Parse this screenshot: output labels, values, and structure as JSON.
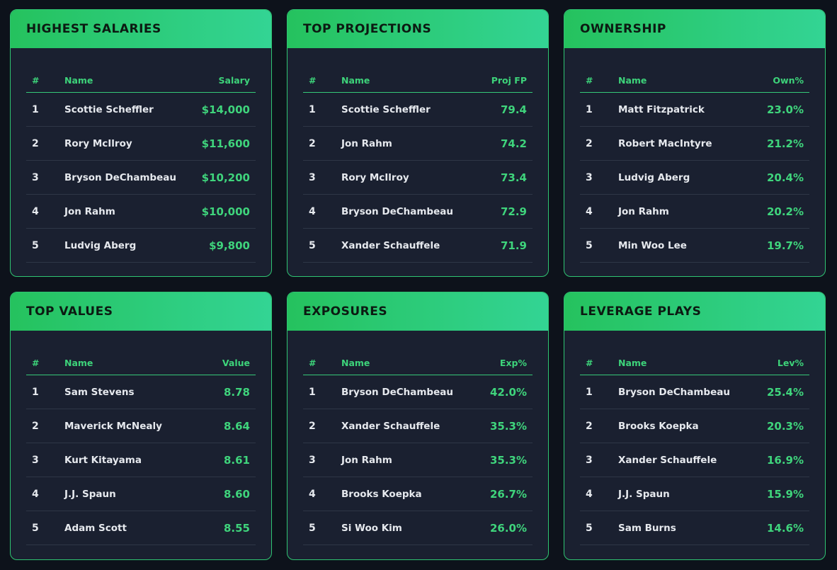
{
  "cards": [
    {
      "title": "HIGHEST SALARIES",
      "headers": {
        "rank": "#",
        "name": "Name",
        "value": "Salary"
      },
      "rows": [
        {
          "rank": "1",
          "name": "Scottie Scheffler",
          "value": "$14,000"
        },
        {
          "rank": "2",
          "name": "Rory McIlroy",
          "value": "$11,600"
        },
        {
          "rank": "3",
          "name": "Bryson DeChambeau",
          "value": "$10,200"
        },
        {
          "rank": "4",
          "name": "Jon Rahm",
          "value": "$10,000"
        },
        {
          "rank": "5",
          "name": "Ludvig Aberg",
          "value": "$9,800"
        }
      ]
    },
    {
      "title": "TOP PROJECTIONS",
      "headers": {
        "rank": "#",
        "name": "Name",
        "value": "Proj FP"
      },
      "rows": [
        {
          "rank": "1",
          "name": "Scottie Scheffler",
          "value": "79.4"
        },
        {
          "rank": "2",
          "name": "Jon Rahm",
          "value": "74.2"
        },
        {
          "rank": "3",
          "name": "Rory McIlroy",
          "value": "73.4"
        },
        {
          "rank": "4",
          "name": "Bryson DeChambeau",
          "value": "72.9"
        },
        {
          "rank": "5",
          "name": "Xander Schauffele",
          "value": "71.9"
        }
      ]
    },
    {
      "title": "OWNERSHIP",
      "headers": {
        "rank": "#",
        "name": "Name",
        "value": "Own%"
      },
      "rows": [
        {
          "rank": "1",
          "name": "Matt Fitzpatrick",
          "value": "23.0%"
        },
        {
          "rank": "2",
          "name": "Robert MacIntyre",
          "value": "21.2%"
        },
        {
          "rank": "3",
          "name": "Ludvig Aberg",
          "value": "20.4%"
        },
        {
          "rank": "4",
          "name": "Jon Rahm",
          "value": "20.2%"
        },
        {
          "rank": "5",
          "name": "Min Woo Lee",
          "value": "19.7%"
        }
      ]
    },
    {
      "title": "TOP VALUES",
      "headers": {
        "rank": "#",
        "name": "Name",
        "value": "Value"
      },
      "rows": [
        {
          "rank": "1",
          "name": "Sam Stevens",
          "value": "8.78"
        },
        {
          "rank": "2",
          "name": "Maverick McNealy",
          "value": "8.64"
        },
        {
          "rank": "3",
          "name": "Kurt Kitayama",
          "value": "8.61"
        },
        {
          "rank": "4",
          "name": "J.J. Spaun",
          "value": "8.60"
        },
        {
          "rank": "5",
          "name": "Adam Scott",
          "value": "8.55"
        }
      ]
    },
    {
      "title": "EXPOSURES",
      "headers": {
        "rank": "#",
        "name": "Name",
        "value": "Exp%"
      },
      "rows": [
        {
          "rank": "1",
          "name": "Bryson DeChambeau",
          "value": "42.0%"
        },
        {
          "rank": "2",
          "name": "Xander Schauffele",
          "value": "35.3%"
        },
        {
          "rank": "3",
          "name": "Jon Rahm",
          "value": "35.3%"
        },
        {
          "rank": "4",
          "name": "Brooks Koepka",
          "value": "26.7%"
        },
        {
          "rank": "5",
          "name": "Si Woo Kim",
          "value": "26.0%"
        }
      ]
    },
    {
      "title": "LEVERAGE PLAYS",
      "headers": {
        "rank": "#",
        "name": "Name",
        "value": "Lev%"
      },
      "rows": [
        {
          "rank": "1",
          "name": "Bryson DeChambeau",
          "value": "25.4%"
        },
        {
          "rank": "2",
          "name": "Brooks Koepka",
          "value": "20.3%"
        },
        {
          "rank": "3",
          "name": "Xander Schauffele",
          "value": "16.9%"
        },
        {
          "rank": "4",
          "name": "J.J. Spaun",
          "value": "15.9%"
        },
        {
          "rank": "5",
          "name": "Sam Burns",
          "value": "14.6%"
        }
      ]
    }
  ],
  "colors": {
    "background": "#0d121b",
    "card": "#1a2030",
    "accent": "#3fd47c",
    "header_gradient_start": "#25c25e",
    "header_gradient_end": "#33d494"
  }
}
